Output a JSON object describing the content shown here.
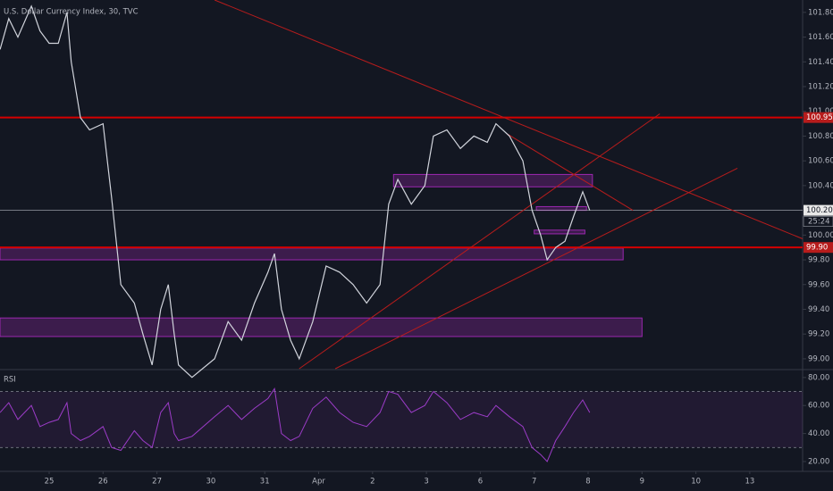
{
  "chart_data": {
    "type": "line",
    "title": "U.S. Dollar Currency Index, 30, TVC",
    "x": [
      -0.91,
      -0.75,
      -0.58,
      -0.33,
      -0.17,
      0,
      0.17,
      0.33,
      0.41,
      0.58,
      0.75,
      1.0,
      1.16,
      1.33,
      1.58,
      1.74,
      1.91,
      2.07,
      2.21,
      2.32,
      2.4,
      2.65,
      3.07,
      3.32,
      3.57,
      3.81,
      4.06,
      4.18,
      4.31,
      4.48,
      4.64,
      4.89,
      5.14,
      5.39,
      5.64,
      5.89,
      6.14,
      6.3,
      6.47,
      6.72,
      6.97,
      7.13,
      7.38,
      7.63,
      7.88,
      8.13,
      8.29,
      8.54,
      8.79,
      8.96,
      9.12,
      9.24,
      9.4,
      9.57,
      9.73,
      9.9,
      10.03
    ],
    "xlim": [
      -0.912,
      13.98
    ],
    "xticks": [
      {
        "value": 0,
        "label": "25"
      },
      {
        "value": 1,
        "label": "26"
      },
      {
        "value": 2,
        "label": "27"
      },
      {
        "value": 3,
        "label": "30"
      },
      {
        "value": 4,
        "label": "31"
      },
      {
        "value": 5,
        "label": "Apr"
      },
      {
        "value": 6,
        "label": "2"
      },
      {
        "value": 7,
        "label": "3"
      },
      {
        "value": 8,
        "label": "6"
      },
      {
        "value": 9,
        "label": "7"
      },
      {
        "value": 10,
        "label": "8"
      },
      {
        "value": 11,
        "label": "9"
      },
      {
        "value": 12,
        "label": "10"
      },
      {
        "value": 13,
        "label": "13"
      }
    ],
    "ylim": [
      98.92,
      101.9
    ],
    "yticks": [
      {
        "value": 101.8,
        "label": "101.80"
      },
      {
        "value": 101.6,
        "label": "101.60"
      },
      {
        "value": 101.4,
        "label": "101.40"
      },
      {
        "value": 101.2,
        "label": "101.20"
      },
      {
        "value": 101.0,
        "label": "101.00"
      },
      {
        "value": 100.8,
        "label": "100.80"
      },
      {
        "value": 100.6,
        "label": "100.60"
      },
      {
        "value": 100.4,
        "label": "100.40"
      },
      {
        "value": 100.0,
        "label": "100.00"
      },
      {
        "value": 99.8,
        "label": "99.80"
      },
      {
        "value": 99.6,
        "label": "99.60"
      },
      {
        "value": 99.4,
        "label": "99.40"
      },
      {
        "value": 99.2,
        "label": "99.20"
      },
      {
        "value": 99.0,
        "label": "99.00"
      }
    ],
    "series": [
      {
        "color": "#d1d4dc",
        "values": [
          101.5,
          101.75,
          101.6,
          101.85,
          101.65,
          101.55,
          101.55,
          101.8,
          101.4,
          100.95,
          100.85,
          100.9,
          100.3,
          99.6,
          99.45,
          99.2,
          98.95,
          99.4,
          99.6,
          99.2,
          98.95,
          98.85,
          99.0,
          99.3,
          99.15,
          99.45,
          99.7,
          99.85,
          99.4,
          99.15,
          99.0,
          99.3,
          99.75,
          99.7,
          99.6,
          99.45,
          99.6,
          100.25,
          100.45,
          100.25,
          100.4,
          100.8,
          100.85,
          100.7,
          100.8,
          100.75,
          100.9,
          100.8,
          100.6,
          100.2,
          100.0,
          99.8,
          99.9,
          99.95,
          100.15,
          100.35,
          100.2
        ]
      }
    ],
    "hlines": [
      {
        "value": 100.95,
        "color": "#d50000"
      },
      {
        "value": 99.9,
        "color": "#d50000"
      }
    ],
    "current_line": {
      "value": 100.2,
      "color": "#b2b5be"
    },
    "price_tags": [
      {
        "value": 100.95,
        "label": "100.95",
        "color": "#b71c1c"
      },
      {
        "value": 100.2,
        "label": "100.20",
        "color": "#e8e8e8"
      },
      {
        "value": 99.9,
        "label": "99.90",
        "color": "#b71c1c"
      }
    ],
    "countdown": "25:24",
    "zones": [
      {
        "x": [
          6.39,
          10.08
        ],
        "y": [
          100.39,
          100.49
        ]
      },
      {
        "x": [
          -0.912,
          10.65
        ],
        "y": [
          99.8,
          99.895
        ]
      },
      {
        "x": [
          -0.912,
          11.0
        ],
        "y": [
          99.18,
          99.33
        ]
      },
      {
        "x": [
          9.04,
          9.97
        ],
        "y": [
          100.2,
          100.23
        ]
      },
      {
        "x": [
          9.0,
          9.94
        ],
        "y": [
          100.01,
          100.04
        ]
      }
    ],
    "zone_color": "#9c27b0",
    "trendlines": [
      {
        "x": [
          3.07,
          13.98
        ],
        "y": [
          101.9,
          99.97
        ]
      },
      {
        "x": [
          4.64,
          11.33
        ],
        "y": [
          98.92,
          100.98
        ]
      },
      {
        "x": [
          5.31,
          12.77
        ],
        "y": [
          98.92,
          100.54
        ]
      },
      {
        "x": [
          8.49,
          10.83
        ],
        "y": [
          100.82,
          100.2
        ]
      }
    ],
    "trend_color": "#b71c1c",
    "rsi": {
      "label": "RSI",
      "ylim": [
        13,
        85
      ],
      "yticks": [
        {
          "value": 80,
          "label": "80.00"
        },
        {
          "value": 60,
          "label": "60.00"
        },
        {
          "value": 40,
          "label": "40.00"
        },
        {
          "value": 20,
          "label": "20.00"
        }
      ],
      "bands": [
        30,
        70
      ],
      "color": "#9c3cc8",
      "values": [
        55,
        62,
        50,
        60,
        45,
        48,
        50,
        62,
        40,
        35,
        38,
        45,
        30,
        28,
        42,
        35,
        30,
        55,
        62,
        40,
        35,
        38,
        52,
        60,
        50,
        58,
        65,
        72,
        40,
        35,
        38,
        58,
        66,
        55,
        48,
        45,
        55,
        70,
        68,
        55,
        60,
        70,
        62,
        50,
        55,
        52,
        60,
        52,
        45,
        30,
        25,
        20,
        35,
        45,
        55,
        64,
        55
      ]
    }
  }
}
